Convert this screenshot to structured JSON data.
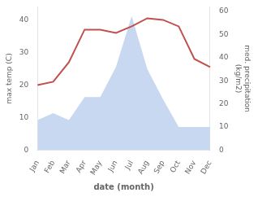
{
  "chart_data": {
    "type": "line",
    "categories": [
      "Jan",
      "Feb",
      "Mar",
      "Apr",
      "May",
      "Jun",
      "Jul",
      "Aug",
      "Sep",
      "Oct",
      "Nov",
      "Dec"
    ],
    "series": [
      {
        "type": "area",
        "axis": "y2",
        "color": "#c8d8f0",
        "values": [
          13,
          16,
          13,
          23,
          23,
          36,
          58,
          35,
          22,
          10,
          10,
          10
        ]
      },
      {
        "type": "line",
        "color": "#c0504d",
        "values": [
          20,
          21,
          27,
          37,
          37,
          36,
          38,
          40.5,
          40,
          38,
          28,
          25.5
        ]
      }
    ],
    "xlabel": "date (month)",
    "ylabel": "max temp (C)",
    "y2label": "med. precipitation\n(kg/m2)",
    "ylim": [
      0,
      44
    ],
    "yticks": [
      0,
      10,
      20,
      30,
      40
    ],
    "y2lim": [
      0,
      62
    ],
    "y2ticks": [
      0,
      10,
      20,
      30,
      40,
      50,
      60
    ],
    "grid": false
  }
}
